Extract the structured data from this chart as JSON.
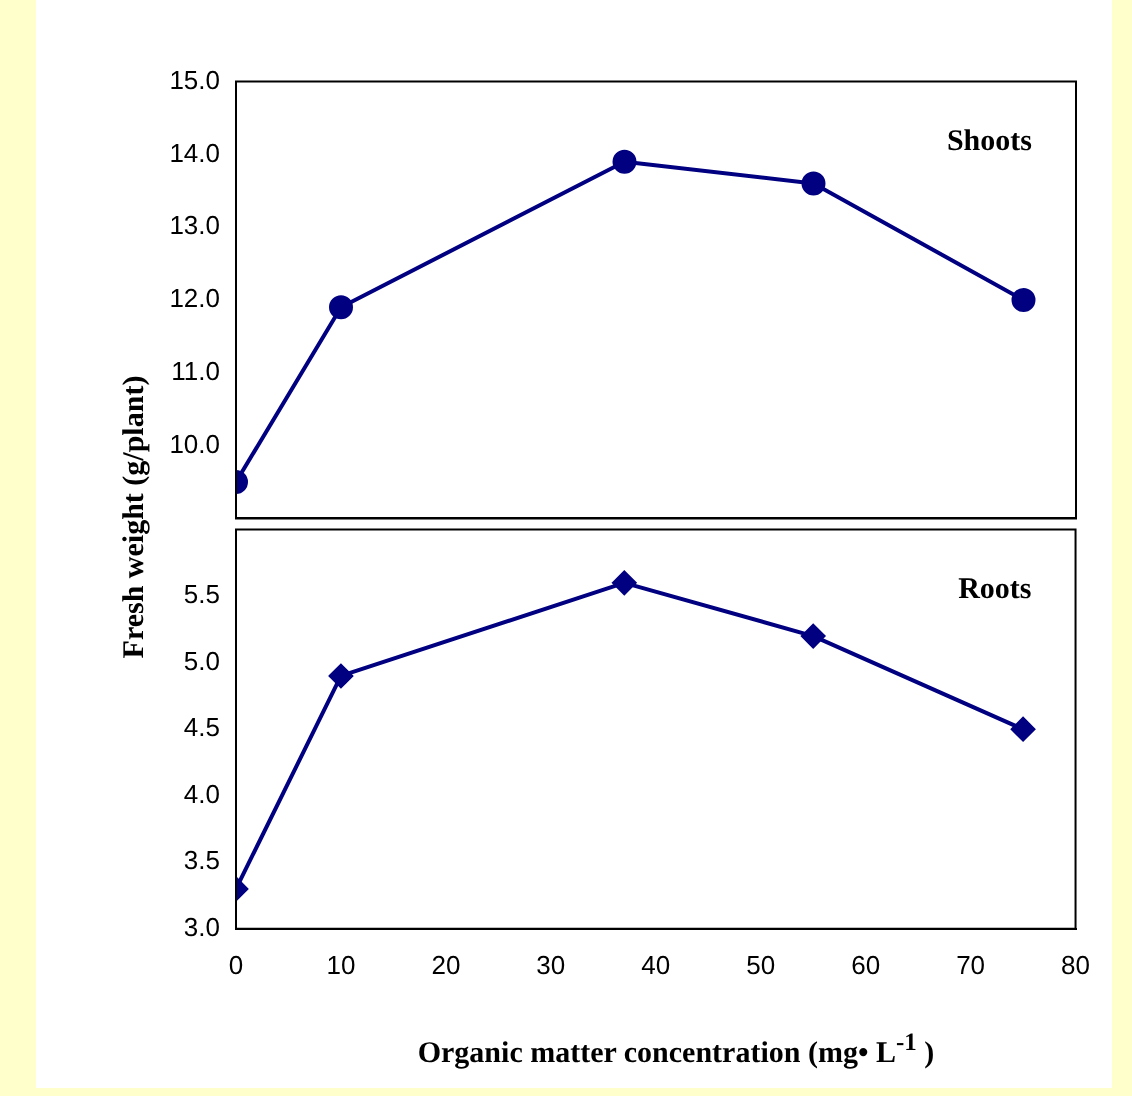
{
  "chart_data": [
    {
      "type": "line",
      "ylabel": "Fresh weight (g/plant)",
      "annotations": [
        "Shoots"
      ],
      "x": [
        0,
        10,
        37,
        55,
        75
      ],
      "values": [
        9.5,
        11.9,
        13.9,
        13.6,
        12.0
      ],
      "color": "#000080",
      "marker": "circle",
      "xlim": [
        0,
        80
      ],
      "ylim": [
        9,
        15
      ],
      "yticks": [
        {
          "value": 9,
          "label": null
        },
        {
          "value": 10,
          "label": "10.0"
        },
        {
          "value": 11,
          "label": "11.0"
        },
        {
          "value": 12,
          "label": "12.0"
        },
        {
          "value": 13,
          "label": "13.0"
        },
        {
          "value": 14,
          "label": "14.0"
        },
        {
          "value": 15,
          "label": "15.0"
        }
      ],
      "tick_labels": "y",
      "grid": false,
      "legend": false
    },
    {
      "type": "line",
      "xlabel": "Organic matter concentration (mg• L$^{-1}$ )",
      "annotations": [
        "Roots"
      ],
      "x": [
        0,
        10,
        37,
        55,
        75
      ],
      "values": [
        3.3,
        4.9,
        5.6,
        5.2,
        4.5
      ],
      "color": "#000080",
      "marker": "diamond",
      "xlim": [
        0,
        80
      ],
      "xticks": [
        0,
        10,
        20,
        30,
        40,
        50,
        60,
        70,
        80
      ],
      "ylim": [
        3,
        6
      ],
      "yticks": [
        {
          "value": 3,
          "label": "3.0"
        },
        {
          "value": 3.5,
          "label": "3.5"
        },
        {
          "value": 4,
          "label": "4.0"
        },
        {
          "value": 4.5,
          "label": "4.5"
        },
        {
          "value": 5,
          "label": "5.0"
        },
        {
          "value": 5.5,
          "label": "5.5"
        },
        {
          "value": 6,
          "label": null
        }
      ],
      "grid": false,
      "legend": false
    }
  ]
}
